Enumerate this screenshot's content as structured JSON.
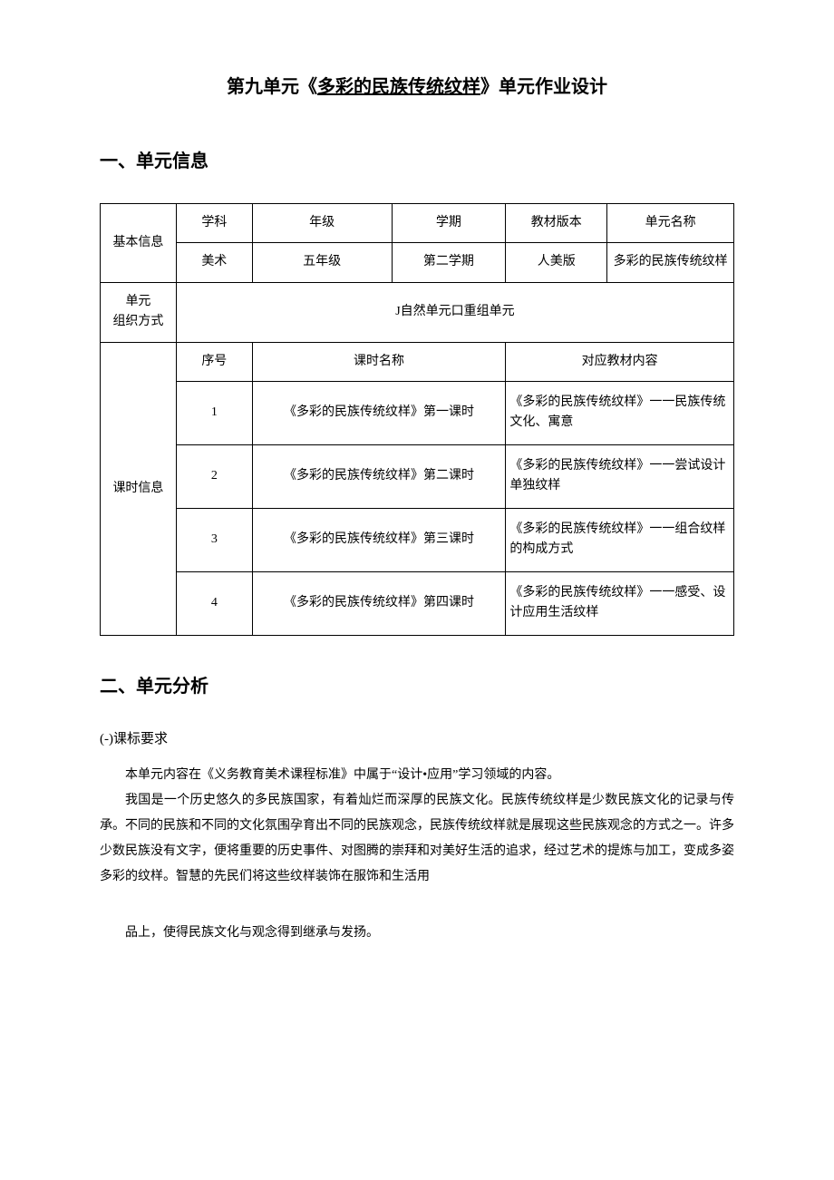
{
  "title": {
    "prefix": "第九单元《",
    "underlined": "多彩的民族传统纹样",
    "suffix": "》单元作业设计"
  },
  "section1_heading": "一、单元信息",
  "table": {
    "row_label_basic": "基本信息",
    "header": {
      "subject": "学科",
      "grade": "年级",
      "term": "学期",
      "textbook": "教材版本",
      "unit_name": "单元名称"
    },
    "basic": {
      "subject": "美术",
      "grade": "五年级",
      "term": "第二学期",
      "textbook": "人美版",
      "unit_name": "多彩的民族传统纹样"
    },
    "org_label": "单元\n组织方式",
    "org_value": "J自然单元口重组单元",
    "lesson_label": "课时信息",
    "lesson_header": {
      "seq": "序号",
      "name": "课时名称",
      "content": "对应教材内容"
    },
    "lessons": [
      {
        "seq": "1",
        "name": "《多彩的民族传统纹样》第一课时",
        "content": "《多彩的民族传统纹样》一一民族传统文化、寓意"
      },
      {
        "seq": "2",
        "name": "《多彩的民族传统纹样》第二课时",
        "content": "《多彩的民族传统纹样》一一尝试设计单独纹样"
      },
      {
        "seq": "3",
        "name": "《多彩的民族传统纹样》第三课时",
        "content": "《多彩的民族传统纹样》一一组合纹样的构成方式"
      },
      {
        "seq": "4",
        "name": "《多彩的民族传统纹样》第四课时",
        "content": "《多彩的民族传统纹样》一一感受、设计应用生活纹样"
      }
    ]
  },
  "section2_heading": "二、单元分析",
  "sub_heading": "(-)课标要求",
  "para1": "本单元内容在《义务教育美术课程标准》中属于“设计•应用”学习领域的内容。",
  "para2": "我国是一个历史悠久的多民族国家，有着灿烂而深厚的民族文化。民族传统纹样是少数民族文化的记录与传承。不同的民族和不同的文化氛围孕育出不同的民族观念，民族传统纹样就是展现这些民族观念的方式之一。许多少数民族没有文字，便将重要的历史事件、对图腾的崇拜和对美好生活的追求，经过艺术的提炼与加工，变成多姿多彩的纹样。智慧的先民们将这些纹样装饰在服饰和生活用",
  "para3": "品上，使得民族文化与观念得到继承与发扬。"
}
